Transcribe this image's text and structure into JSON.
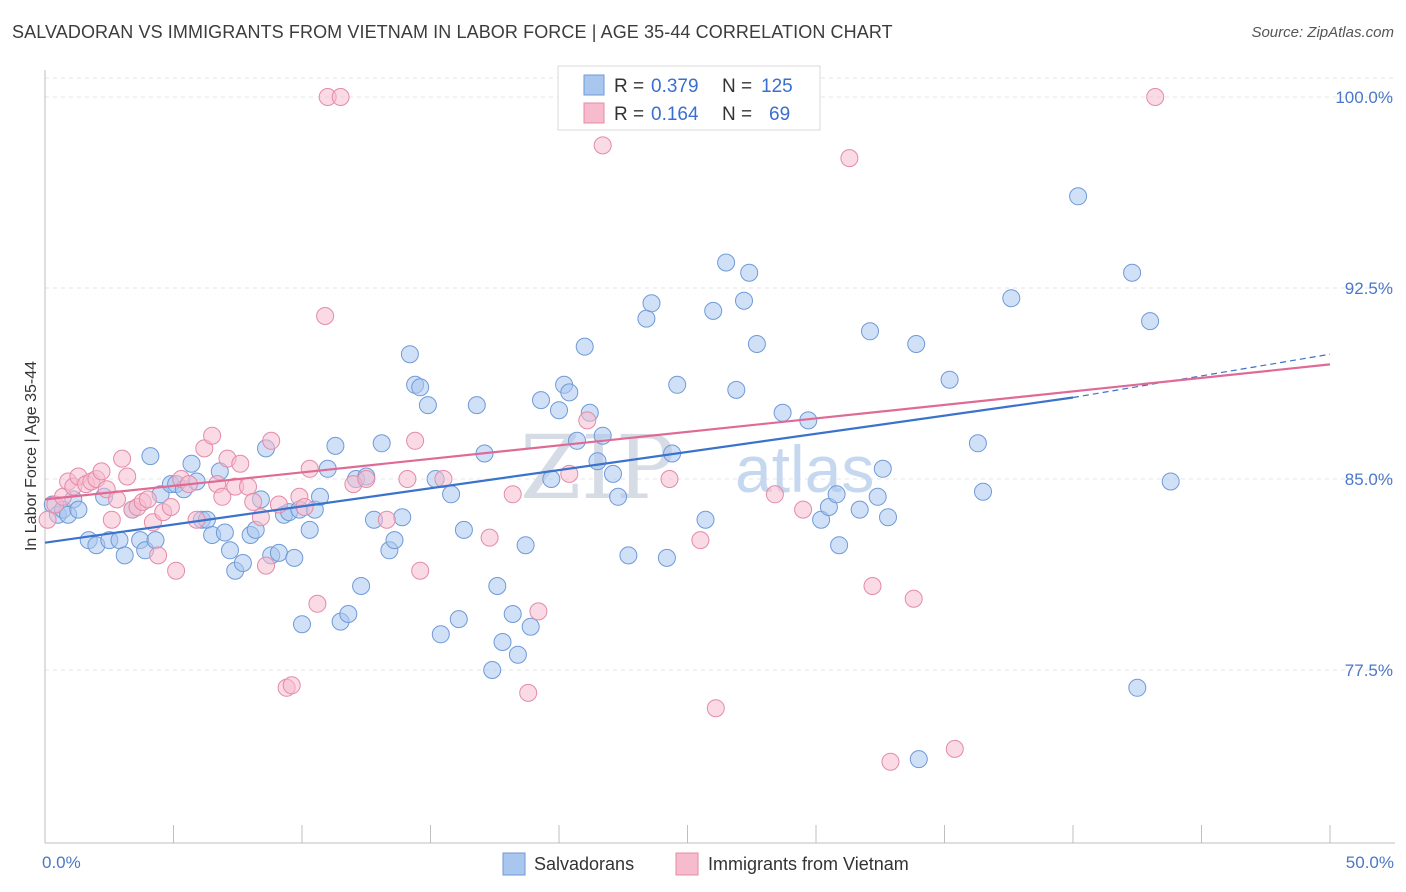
{
  "header": {
    "title": "SALVADORAN VS IMMIGRANTS FROM VIETNAM IN LABOR FORCE | AGE 35-44 CORRELATION CHART",
    "source": "Source: ZipAtlas.com"
  },
  "watermark": {
    "zip": "ZIP",
    "atlas": "atlas"
  },
  "legend": {
    "r_label": "R =",
    "n_label": "N =",
    "entries": [
      {
        "r": "0.379",
        "n": "125"
      },
      {
        "r": "0.164",
        "n": "69"
      }
    ]
  },
  "colors": {
    "blue_fill": "#a9c6ef",
    "blue_stroke": "#6f9ad8",
    "blue_line": "#3a72cc",
    "pink_fill": "#f6bccd",
    "pink_stroke": "#e58aa8",
    "pink_line": "#e06a96"
  },
  "chart_data": {
    "type": "scatter",
    "title": "SALVADORAN VS IMMIGRANTS FROM VIETNAM IN LABOR FORCE | AGE 35-44 CORRELATION CHART",
    "ylabel": "In Labor Force | Age 35-44",
    "xlim": [
      0,
      50
    ],
    "ylim": [
      71.0,
      101.5
    ],
    "x_ticks": [
      "0.0%",
      "50.0%"
    ],
    "y_ticks": [
      {
        "value": 100.0,
        "label": "100.0%"
      },
      {
        "value": 92.5,
        "label": "92.5%"
      },
      {
        "value": 85.0,
        "label": "85.0%"
      },
      {
        "value": 77.5,
        "label": "77.5%"
      }
    ],
    "grid": true,
    "legend_position": "top-center",
    "series": [
      {
        "name": "Salvadorans",
        "color": "#a9c6ef",
        "trend": {
          "x": [
            0,
            40
          ],
          "y": [
            82.5,
            88.2
          ],
          "dashed_to": [
            50,
            89.9
          ]
        },
        "points": [
          [
            0.3,
            84.0
          ],
          [
            0.5,
            83.6
          ],
          [
            0.7,
            83.8
          ],
          [
            0.9,
            83.6
          ],
          [
            1.1,
            84.2
          ],
          [
            1.3,
            83.8
          ],
          [
            1.7,
            82.6
          ],
          [
            2.0,
            82.4
          ],
          [
            2.3,
            84.3
          ],
          [
            2.5,
            82.6
          ],
          [
            2.9,
            82.6
          ],
          [
            3.1,
            82.0
          ],
          [
            3.4,
            83.8
          ],
          [
            3.7,
            82.6
          ],
          [
            3.9,
            82.2
          ],
          [
            4.1,
            85.9
          ],
          [
            4.3,
            82.6
          ],
          [
            4.5,
            84.4
          ],
          [
            4.9,
            84.8
          ],
          [
            5.1,
            84.8
          ],
          [
            5.4,
            84.6
          ],
          [
            5.7,
            85.6
          ],
          [
            5.9,
            84.9
          ],
          [
            6.1,
            83.4
          ],
          [
            6.3,
            83.4
          ],
          [
            6.5,
            82.8
          ],
          [
            6.8,
            85.3
          ],
          [
            7.0,
            82.9
          ],
          [
            7.2,
            82.2
          ],
          [
            7.4,
            81.4
          ],
          [
            7.7,
            81.7
          ],
          [
            8.0,
            82.8
          ],
          [
            8.2,
            83.0
          ],
          [
            8.4,
            84.2
          ],
          [
            8.6,
            86.2
          ],
          [
            8.8,
            82.0
          ],
          [
            9.1,
            82.1
          ],
          [
            9.3,
            83.6
          ],
          [
            9.5,
            83.7
          ],
          [
            9.7,
            81.9
          ],
          [
            9.9,
            83.8
          ],
          [
            10.0,
            79.3
          ],
          [
            10.3,
            83.0
          ],
          [
            10.5,
            83.8
          ],
          [
            10.7,
            84.3
          ],
          [
            11.0,
            85.4
          ],
          [
            11.3,
            86.3
          ],
          [
            11.5,
            79.4
          ],
          [
            11.8,
            79.7
          ],
          [
            12.1,
            85.0
          ],
          [
            12.3,
            80.8
          ],
          [
            12.5,
            85.1
          ],
          [
            12.8,
            83.4
          ],
          [
            13.1,
            86.4
          ],
          [
            13.4,
            82.2
          ],
          [
            13.6,
            82.6
          ],
          [
            13.9,
            83.5
          ],
          [
            14.2,
            89.9
          ],
          [
            14.4,
            88.7
          ],
          [
            14.6,
            88.6
          ],
          [
            14.9,
            87.9
          ],
          [
            15.2,
            85.0
          ],
          [
            15.4,
            78.9
          ],
          [
            15.8,
            84.4
          ],
          [
            16.1,
            79.5
          ],
          [
            16.3,
            83.0
          ],
          [
            16.8,
            87.9
          ],
          [
            17.1,
            86.0
          ],
          [
            17.4,
            77.5
          ],
          [
            17.6,
            80.8
          ],
          [
            17.8,
            78.6
          ],
          [
            18.2,
            79.7
          ],
          [
            18.4,
            78.1
          ],
          [
            18.7,
            82.4
          ],
          [
            18.9,
            79.2
          ],
          [
            19.3,
            88.1
          ],
          [
            19.7,
            85.0
          ],
          [
            20.0,
            87.7
          ],
          [
            20.2,
            88.7
          ],
          [
            20.4,
            88.4
          ],
          [
            20.7,
            86.5
          ],
          [
            21.0,
            90.2
          ],
          [
            21.2,
            87.6
          ],
          [
            21.5,
            85.7
          ],
          [
            21.7,
            86.7
          ],
          [
            22.1,
            85.2
          ],
          [
            22.3,
            84.3
          ],
          [
            22.7,
            82.0
          ],
          [
            23.4,
            91.3
          ],
          [
            23.6,
            91.9
          ],
          [
            24.2,
            81.9
          ],
          [
            24.4,
            86.0
          ],
          [
            24.6,
            88.7
          ],
          [
            25.7,
            83.4
          ],
          [
            26.0,
            91.6
          ],
          [
            26.5,
            93.5
          ],
          [
            26.9,
            88.5
          ],
          [
            27.2,
            92.0
          ],
          [
            27.4,
            93.1
          ],
          [
            27.7,
            90.3
          ],
          [
            28.7,
            87.6
          ],
          [
            29.7,
            87.3
          ],
          [
            30.2,
            83.4
          ],
          [
            30.5,
            83.9
          ],
          [
            30.8,
            84.4
          ],
          [
            30.9,
            82.4
          ],
          [
            31.7,
            83.8
          ],
          [
            32.1,
            90.8
          ],
          [
            32.4,
            84.3
          ],
          [
            32.6,
            85.4
          ],
          [
            32.8,
            83.5
          ],
          [
            33.9,
            90.3
          ],
          [
            34.0,
            74.0
          ],
          [
            35.2,
            88.9
          ],
          [
            36.3,
            86.4
          ],
          [
            36.5,
            84.5
          ],
          [
            37.6,
            92.1
          ],
          [
            40.2,
            96.1
          ],
          [
            42.3,
            93.1
          ],
          [
            42.5,
            76.8
          ],
          [
            43.0,
            91.2
          ],
          [
            43.8,
            84.9
          ]
        ]
      },
      {
        "name": "Immigrants from Vietnam",
        "color": "#f6bccd",
        "trend": {
          "x": [
            0,
            50
          ],
          "y": [
            84.2,
            89.5
          ]
        },
        "points": [
          [
            0.4,
            84.0
          ],
          [
            0.7,
            84.3
          ],
          [
            0.9,
            84.9
          ],
          [
            1.1,
            84.7
          ],
          [
            1.3,
            85.1
          ],
          [
            1.6,
            84.8
          ],
          [
            1.8,
            84.9
          ],
          [
            2.0,
            85.0
          ],
          [
            2.2,
            85.3
          ],
          [
            2.4,
            84.6
          ],
          [
            2.6,
            83.4
          ],
          [
            2.8,
            84.2
          ],
          [
            3.0,
            85.8
          ],
          [
            3.2,
            85.1
          ],
          [
            3.4,
            83.8
          ],
          [
            3.6,
            83.9
          ],
          [
            3.8,
            84.1
          ],
          [
            4.0,
            84.2
          ],
          [
            4.2,
            83.3
          ],
          [
            4.4,
            82.0
          ],
          [
            4.6,
            83.7
          ],
          [
            4.9,
            83.9
          ],
          [
            5.1,
            81.4
          ],
          [
            5.3,
            85.0
          ],
          [
            5.6,
            84.8
          ],
          [
            5.9,
            83.4
          ],
          [
            6.2,
            86.2
          ],
          [
            6.5,
            86.7
          ],
          [
            6.7,
            84.8
          ],
          [
            6.9,
            84.3
          ],
          [
            7.1,
            85.8
          ],
          [
            7.4,
            84.7
          ],
          [
            7.6,
            85.6
          ],
          [
            7.9,
            84.7
          ],
          [
            8.1,
            84.1
          ],
          [
            8.4,
            83.5
          ],
          [
            8.6,
            81.6
          ],
          [
            8.8,
            86.5
          ],
          [
            9.1,
            84.0
          ],
          [
            9.4,
            76.8
          ],
          [
            9.6,
            76.9
          ],
          [
            9.9,
            84.3
          ],
          [
            10.1,
            83.9
          ],
          [
            10.3,
            85.4
          ],
          [
            10.6,
            80.1
          ],
          [
            10.9,
            91.4
          ],
          [
            11.0,
            100.0
          ],
          [
            11.5,
            100.0
          ],
          [
            12.0,
            84.8
          ],
          [
            12.5,
            85.0
          ],
          [
            13.3,
            83.4
          ],
          [
            14.1,
            85.0
          ],
          [
            14.4,
            86.5
          ],
          [
            14.6,
            81.4
          ],
          [
            15.5,
            85.0
          ],
          [
            17.3,
            82.7
          ],
          [
            18.2,
            84.4
          ],
          [
            18.8,
            76.6
          ],
          [
            19.2,
            79.8
          ],
          [
            20.4,
            85.2
          ],
          [
            21.1,
            87.3
          ],
          [
            21.7,
            98.1
          ],
          [
            22.3,
            99.9
          ],
          [
            24.3,
            85.0
          ],
          [
            25.5,
            82.6
          ],
          [
            26.1,
            76.0
          ],
          [
            28.4,
            84.4
          ],
          [
            29.5,
            83.8
          ],
          [
            31.3,
            97.6
          ],
          [
            32.2,
            80.8
          ],
          [
            32.9,
            73.9
          ],
          [
            33.8,
            80.3
          ],
          [
            35.4,
            74.4
          ],
          [
            43.2,
            100.0
          ],
          [
            0.1,
            83.4
          ]
        ]
      }
    ]
  }
}
